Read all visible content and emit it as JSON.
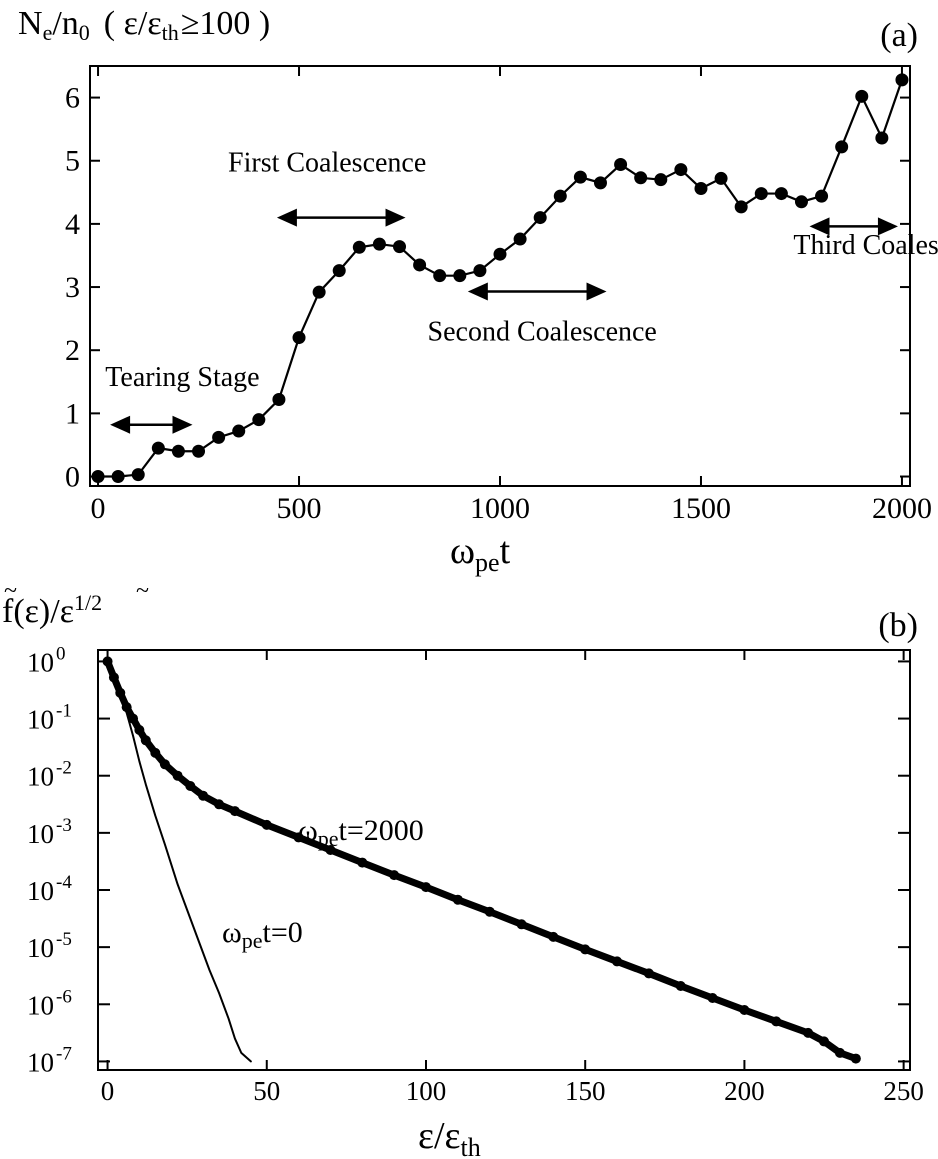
{
  "chart_data": [
    {
      "panel": "(a)",
      "type": "line",
      "ylabel": {
        "main": "N",
        "sub1": "e",
        "mid": "/n",
        "sub2": "0",
        "cond_open": "( ε/ε",
        "cond_sub": "th",
        "cond_close": "≥100 )"
      },
      "xlabel": {
        "main": "ω",
        "sub": "pe",
        "tail": "t"
      },
      "xlim": [
        -20,
        2020
      ],
      "ylim": [
        -0.15,
        6.5
      ],
      "xticks": [
        0,
        500,
        1000,
        1500,
        2000
      ],
      "xtick_labels": [
        "0",
        "500",
        "1000",
        "1500",
        "2000"
      ],
      "yticks": [
        0,
        1,
        2,
        3,
        4,
        5,
        6
      ],
      "ytick_labels": [
        "0",
        "1",
        "2",
        "3",
        "4",
        "5",
        "6"
      ],
      "markers": true,
      "x": [
        0,
        50,
        100,
        150,
        200,
        250,
        300,
        350,
        400,
        450,
        500,
        550,
        600,
        650,
        700,
        750,
        800,
        850,
        900,
        950,
        1000,
        1050,
        1100,
        1150,
        1200,
        1250,
        1300,
        1350,
        1400,
        1450,
        1500,
        1550,
        1600,
        1650,
        1700,
        1750,
        1800,
        1850,
        1900,
        1950,
        2000
      ],
      "y": [
        0.0,
        0.0,
        0.03,
        0.45,
        0.4,
        0.4,
        0.62,
        0.72,
        0.9,
        1.22,
        2.2,
        2.92,
        3.26,
        3.63,
        3.68,
        3.64,
        3.35,
        3.18,
        3.18,
        3.26,
        3.52,
        3.76,
        4.1,
        4.44,
        4.74,
        4.65,
        4.94,
        4.73,
        4.7,
        4.86,
        4.56,
        4.72,
        4.27,
        4.48,
        4.48,
        4.35,
        4.44,
        5.22,
        6.02,
        5.36,
        6.28
      ],
      "annotations": [
        {
          "text": "Tearing Stage",
          "label_x": 210,
          "label_y": 1.43,
          "arrow": [
            30,
            235
          ],
          "arrow_y": 0.82
        },
        {
          "text": "First Coalescence",
          "label_x": 570,
          "label_y": 4.83,
          "arrow": [
            445,
            765
          ],
          "arrow_y": 4.1
        },
        {
          "text": "Second Coalescence",
          "label_x": 1105,
          "label_y": 2.15,
          "arrow": [
            920,
            1265
          ],
          "arrow_y": 2.93
        },
        {
          "text": "Third Coalescence",
          "label_x": 1990,
          "label_y": 3.52,
          "arrow": [
            1770,
            1990
          ],
          "arrow_y": 3.96
        }
      ]
    },
    {
      "panel": "(b)",
      "type": "line",
      "yscale": "log",
      "ylabel": {
        "f": "f",
        "mid": "(ε)/",
        "eps": "ε",
        "sup": "1/2"
      },
      "xlabel": {
        "main": "ε/ε",
        "sub": "th"
      },
      "xlim": [
        -3,
        252
      ],
      "ylim_exp": [
        -7.15,
        0.2
      ],
      "xticks": [
        0,
        50,
        100,
        150,
        200,
        250
      ],
      "xtick_labels": [
        "0",
        "50",
        "100",
        "150",
        "200",
        "250"
      ],
      "yticks_exp": [
        0,
        -1,
        -2,
        -3,
        -4,
        -5,
        -6,
        -7
      ],
      "ytick_base": "10",
      "ytick_exp_labels": [
        "0",
        "-1",
        "-2",
        "-3",
        "-4",
        "-5",
        "-6",
        "-7"
      ],
      "series": [
        {
          "label_main": "ω",
          "label_sub": "pe",
          "label_tail": "t=2000",
          "style": "thick",
          "x": [
            0,
            2,
            4,
            6,
            8,
            10,
            12,
            15,
            18,
            22,
            26,
            30,
            35,
            40,
            50,
            60,
            70,
            80,
            90,
            100,
            110,
            120,
            130,
            140,
            150,
            160,
            170,
            180,
            190,
            200,
            210,
            220,
            225,
            230,
            235
          ],
          "log10_y": [
            0,
            -0.28,
            -0.55,
            -0.8,
            -1.0,
            -1.2,
            -1.38,
            -1.6,
            -1.8,
            -2.0,
            -2.18,
            -2.35,
            -2.5,
            -2.62,
            -2.86,
            -3.08,
            -3.3,
            -3.52,
            -3.74,
            -3.95,
            -4.17,
            -4.38,
            -4.6,
            -4.82,
            -5.04,
            -5.25,
            -5.46,
            -5.68,
            -5.89,
            -6.1,
            -6.3,
            -6.5,
            -6.65,
            -6.85,
            -6.95
          ]
        },
        {
          "label_main": "ω",
          "label_sub": "pe",
          "label_tail": "t=0",
          "style": "thin",
          "x": [
            0,
            2,
            4,
            6,
            8,
            10,
            12,
            15,
            18,
            20,
            22,
            25,
            28,
            30,
            32,
            35,
            38,
            40,
            42,
            45
          ],
          "log10_y": [
            0,
            -0.3,
            -0.6,
            -0.9,
            -1.3,
            -1.75,
            -2.15,
            -2.7,
            -3.2,
            -3.55,
            -3.9,
            -4.35,
            -4.8,
            -5.1,
            -5.4,
            -5.8,
            -6.25,
            -6.6,
            -6.85,
            -7.0
          ]
        }
      ]
    }
  ]
}
